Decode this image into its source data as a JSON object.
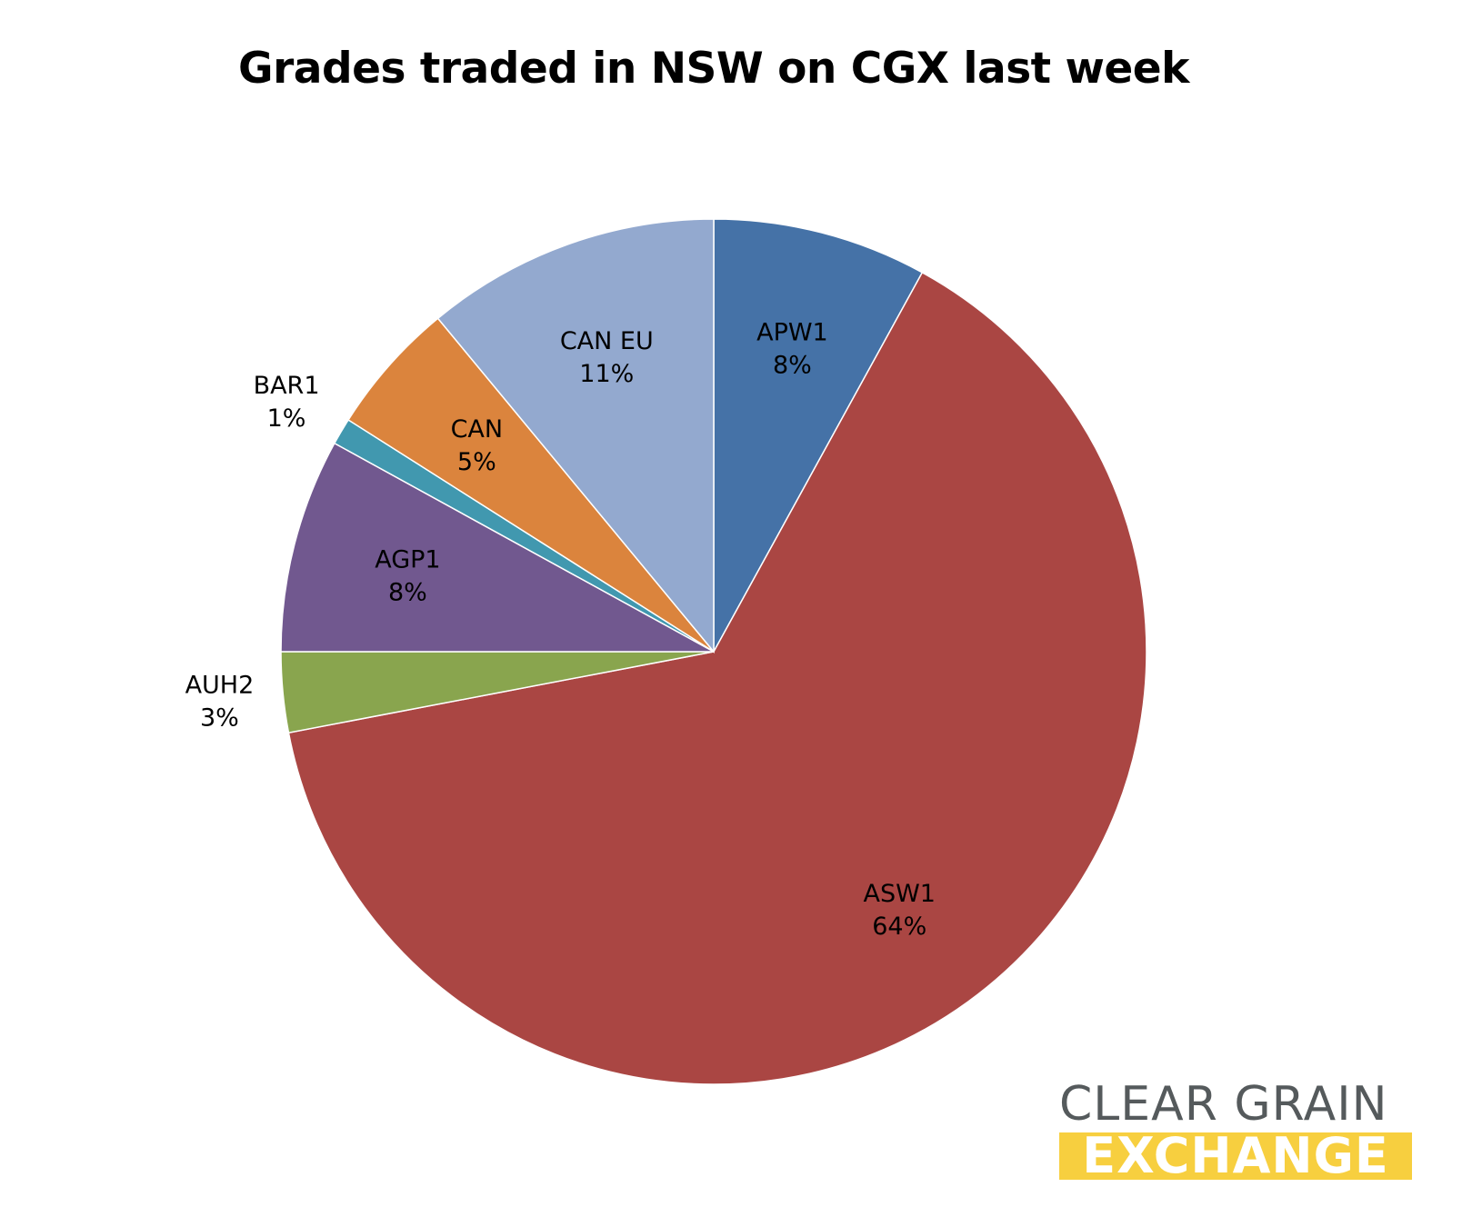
{
  "chart_data": {
    "type": "pie",
    "title": "Grades traded in NSW on CGX last week",
    "start_angle_deg": 0,
    "direction": "clockwise",
    "slices": [
      {
        "name": "APW1",
        "value": 8,
        "label": "8%",
        "color": "#4572a7"
      },
      {
        "name": "ASW1",
        "value": 64,
        "label": "64%",
        "color": "#aa4643"
      },
      {
        "name": "AUH2",
        "value": 3,
        "label": "3%",
        "color": "#89a54e"
      },
      {
        "name": "AGP1",
        "value": 8,
        "label": "8%",
        "color": "#71588f"
      },
      {
        "name": "BAR1",
        "value": 1,
        "label": "1%",
        "color": "#4198af"
      },
      {
        "name": "CAN",
        "value": 5,
        "label": "5%",
        "color": "#db843d"
      },
      {
        "name": "CAN EU",
        "value": 11,
        "label": "11%",
        "color": "#93a9cf"
      }
    ],
    "label_placement": {
      "APW1": "inside",
      "ASW1": "inside",
      "AUH2": "outside",
      "AGP1": "inside",
      "BAR1": "outside",
      "CAN": "inside",
      "CAN EU": "inside"
    }
  },
  "logo": {
    "line1": "CLEAR GRAIN",
    "line2": "EXCHANGE",
    "line1_color": "#555a5c",
    "line2_band_color": "#f7cf3f"
  }
}
